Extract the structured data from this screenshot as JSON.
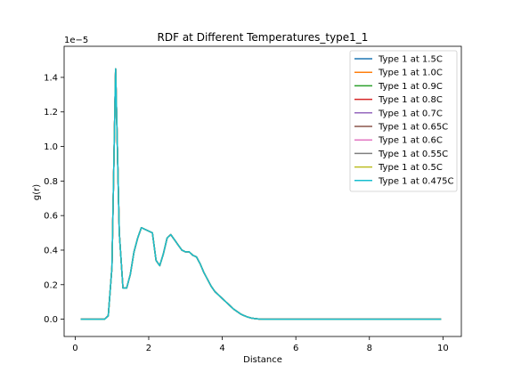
{
  "chart_data": {
    "type": "line",
    "title": "RDF at Different Temperatures_type1_1",
    "xlabel": "Distance",
    "ylabel": "g(r)",
    "y_offset_label": "1e−5",
    "xlim": [
      -0.3,
      10.5
    ],
    "ylim": [
      -1e-06,
      1.58e-05
    ],
    "x_ticks": [
      0,
      2,
      4,
      6,
      8,
      10
    ],
    "x_tick_labels": [
      "0",
      "2",
      "4",
      "6",
      "8",
      "10"
    ],
    "y_ticks": [
      0,
      2e-06,
      4e-06,
      6e-06,
      8e-06,
      1e-05,
      1.2e-05,
      1.4e-05
    ],
    "y_tick_labels": [
      "0.0",
      "0.2",
      "0.4",
      "0.6",
      "0.8",
      "1.0",
      "1.2",
      "1.4"
    ],
    "grid": false,
    "legend_position": "top-right",
    "x": [
      0.15,
      0.3,
      0.5,
      0.7,
      0.8,
      0.9,
      1.0,
      1.1,
      1.2,
      1.3,
      1.4,
      1.5,
      1.6,
      1.7,
      1.8,
      1.9,
      2.0,
      2.1,
      2.2,
      2.3,
      2.4,
      2.5,
      2.6,
      2.7,
      2.8,
      2.9,
      3.0,
      3.1,
      3.2,
      3.3,
      3.4,
      3.5,
      3.6,
      3.7,
      3.8,
      3.9,
      4.0,
      4.1,
      4.2,
      4.3,
      4.4,
      4.5,
      4.6,
      4.7,
      4.8,
      4.9,
      5.0,
      5.1,
      5.2,
      5.3,
      5.4,
      5.5,
      5.6,
      5.8,
      6.0,
      7.0,
      8.0,
      9.0,
      9.95
    ],
    "series_y": [
      0,
      0,
      0,
      0,
      0,
      2e-07,
      3e-06,
      1.45e-05,
      5e-06,
      1.8e-06,
      1.8e-06,
      2.6e-06,
      3.9e-06,
      4.7e-06,
      5.3e-06,
      5.2e-06,
      5.1e-06,
      5e-06,
      3.4e-06,
      3.1e-06,
      3.8e-06,
      4.7e-06,
      4.9e-06,
      4.6e-06,
      4.3e-06,
      4e-06,
      3.9e-06,
      3.9e-06,
      3.7e-06,
      3.6e-06,
      3.2e-06,
      2.7e-06,
      2.3e-06,
      1.9e-06,
      1.6e-06,
      1.4e-06,
      1.2e-06,
      1e-06,
      8e-07,
      6e-07,
      4.5e-07,
      3e-07,
      2e-07,
      1.2e-07,
      6e-08,
      3e-08,
      1e-08,
      0,
      0,
      0,
      0,
      0,
      0,
      0,
      0,
      0,
      0,
      0,
      0
    ],
    "series": [
      {
        "name": "Type 1 at 1.5C",
        "color": "#1f77b4"
      },
      {
        "name": "Type 1 at 1.0C",
        "color": "#ff7f0e"
      },
      {
        "name": "Type 1 at 0.9C",
        "color": "#2ca02c"
      },
      {
        "name": "Type 1 at 0.8C",
        "color": "#d62728"
      },
      {
        "name": "Type 1 at 0.7C",
        "color": "#9467bd"
      },
      {
        "name": "Type 1 at 0.65C",
        "color": "#8c564b"
      },
      {
        "name": "Type 1 at 0.6C",
        "color": "#e377c2"
      },
      {
        "name": "Type 1 at 0.55C",
        "color": "#7f7f7f"
      },
      {
        "name": "Type 1 at 0.5C",
        "color": "#bcbd22"
      },
      {
        "name": "Type 1 at 0.475C",
        "color": "#17becf"
      }
    ]
  }
}
